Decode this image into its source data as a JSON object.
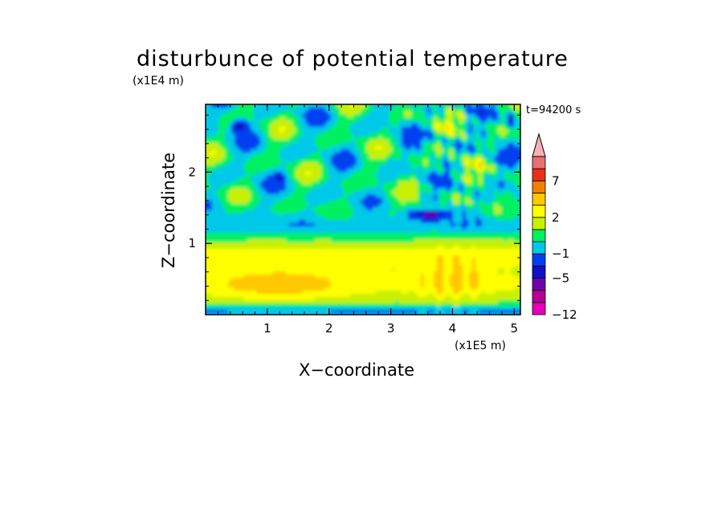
{
  "chart_data": {
    "type": "heatmap",
    "title": "disturbunce of potential temperature",
    "xlabel": "X−coordinate",
    "ylabel": "Z−coordinate",
    "x_unit_label": "(x1E5 m)",
    "y_unit_label": "(x1E4 m)",
    "annotation": "t=94200 s",
    "xlim": [
      0,
      5.1
    ],
    "ylim": [
      0,
      2.95
    ],
    "x_ticks": [
      1,
      2,
      3,
      4,
      5
    ],
    "x_tick_labels": [
      "1",
      "2",
      "3",
      "4",
      "5"
    ],
    "y_ticks": [
      1,
      2
    ],
    "y_tick_labels": [
      "1",
      "2"
    ],
    "colorbar_levels": [
      -12,
      -9,
      -7,
      -5,
      -3,
      -1,
      0,
      1,
      2,
      3,
      5,
      7,
      9,
      12
    ],
    "colorbar_tick_labels": [
      "7",
      "2",
      "−1",
      "−5",
      "−12"
    ],
    "colorbar_colors": [
      "#e400b8",
      "#b40098",
      "#7000a8",
      "#1010c8",
      "#0040f0",
      "#00c8e8",
      "#00f060",
      "#c8f000",
      "#ffff00",
      "#ffc800",
      "#f08000",
      "#e83018",
      "#e87070",
      "#f8b0b0"
    ],
    "grid": false,
    "features": [
      {
        "x": 0.5,
        "z": 2.6,
        "value": -5
      },
      {
        "x": 1.2,
        "z": 1.9,
        "value": -5
      },
      {
        "x": 3.6,
        "z": 1.4,
        "value": -5
      },
      {
        "x": 4.9,
        "z": 2.7,
        "value": -5
      },
      {
        "x": 1.2,
        "z": 0.4,
        "value": 3
      },
      {
        "x": 4.0,
        "z": 0.45,
        "value": 5
      },
      {
        "x": 1.5,
        "z": 0.9,
        "value": 1
      }
    ]
  }
}
